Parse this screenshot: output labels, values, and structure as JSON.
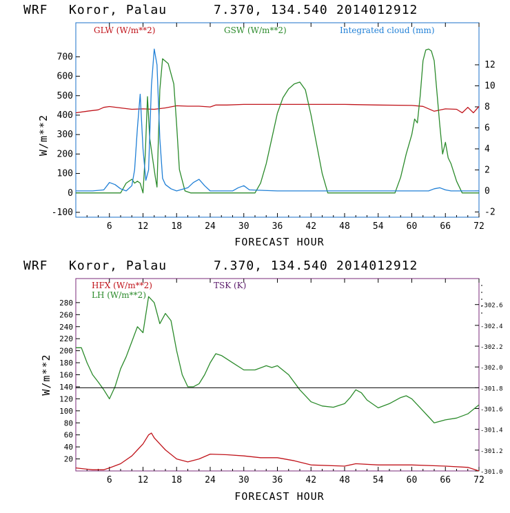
{
  "colors": {
    "red": "#c0131a",
    "green": "#2a8a2a",
    "blue": "#1f7fd6",
    "purple": "#5a1a6a",
    "frame_top": "#1a6fc9",
    "frame_bottom": "#7a2a7a"
  },
  "chart_data": [
    {
      "type": "line",
      "header": {
        "model": "WRF",
        "location": "Koror, Palau",
        "coords": "7.370, 134.540",
        "init": "2014012912"
      },
      "xlabel": "FORECAST HOUR",
      "ylabel": "W/m**2",
      "xlim": [
        0,
        72
      ],
      "ylim": [
        -125,
        875
      ],
      "y2lim": [
        -2.5,
        16
      ],
      "x_ticks": [
        "6",
        "12",
        "18",
        "24",
        "30",
        "36",
        "42",
        "48",
        "54",
        "60",
        "66",
        "72"
      ],
      "y_ticks": [
        "-100",
        "0",
        "100",
        "200",
        "300",
        "400",
        "500",
        "600",
        "700"
      ],
      "y2_ticks": [
        "-2",
        "0",
        "2",
        "4",
        "6",
        "8",
        "10",
        "12"
      ],
      "legend": [
        {
          "label": "GLW (W/m**2)",
          "color": "#c0131a"
        },
        {
          "label": "GSW (W/m**2)",
          "color": "#2a8a2a"
        },
        {
          "label": "Integrated cloud (mm)",
          "color": "#1f7fd6"
        }
      ],
      "series": [
        {
          "name": "GLW (W/m**2)",
          "axis": "left",
          "x": [
            0,
            2,
            4,
            5,
            6,
            8,
            10,
            12,
            14,
            16,
            18,
            20,
            22,
            24,
            25,
            27,
            30,
            36,
            42,
            48,
            54,
            60,
            62,
            64,
            66,
            68,
            69,
            70,
            71,
            72
          ],
          "y": [
            412,
            420,
            427,
            440,
            444,
            437,
            430,
            432,
            430,
            437,
            448,
            446,
            446,
            442,
            452,
            452,
            455,
            455,
            455,
            455,
            452,
            450,
            445,
            420,
            432,
            430,
            412,
            440,
            412,
            445
          ]
        },
        {
          "name": "GSW (W/m**2)",
          "axis": "left",
          "x": [
            0,
            8,
            9,
            10,
            10.5,
            11,
            11.5,
            12,
            12.4,
            12.8,
            13.2,
            13.6,
            14.2,
            14.5,
            15,
            15.5,
            16.5,
            17.5,
            18,
            18.5,
            19.5,
            20.5,
            21,
            32,
            33,
            34,
            35,
            36,
            37,
            38,
            39,
            40,
            41,
            42,
            43,
            44,
            45,
            57,
            58,
            59,
            60,
            60.5,
            61,
            61.5,
            62,
            62.5,
            63,
            63.5,
            64,
            65,
            65.5,
            66,
            66.5,
            67,
            68,
            69,
            72
          ],
          "y": [
            0,
            0,
            50,
            70,
            50,
            60,
            50,
            0,
            200,
            495,
            280,
            200,
            80,
            30,
            530,
            690,
            665,
            560,
            350,
            120,
            10,
            0,
            0,
            0,
            50,
            150,
            280,
            410,
            490,
            535,
            560,
            570,
            530,
            400,
            250,
            100,
            0,
            0,
            80,
            200,
            300,
            380,
            360,
            500,
            680,
            735,
            740,
            730,
            680,
            350,
            200,
            260,
            180,
            150,
            60,
            0,
            0
          ]
        },
        {
          "name": "Integrated cloud (mm)",
          "axis": "right",
          "x": [
            0,
            3,
            5,
            6,
            7,
            8,
            9,
            10,
            10.5,
            11,
            11.5,
            12,
            12.5,
            13,
            13.5,
            14,
            14.5,
            15,
            15.5,
            16,
            17,
            18,
            20,
            21,
            22,
            23,
            24,
            28,
            29,
            30,
            31,
            36,
            48,
            60,
            63,
            64,
            65,
            66,
            67,
            72
          ],
          "y": [
            0,
            0,
            0.1,
            0.8,
            0.6,
            0.2,
            0,
            0.5,
            2,
            6,
            9.2,
            4,
            1,
            2,
            10,
            13.5,
            12,
            5,
            1.2,
            0.6,
            0.2,
            0,
            0.3,
            0.8,
            1.1,
            0.5,
            0,
            0,
            0.3,
            0.5,
            0.1,
            0,
            0,
            0,
            0,
            0.2,
            0.3,
            0.1,
            0,
            0
          ]
        }
      ]
    },
    {
      "type": "line",
      "header": {
        "model": "WRF",
        "location": "Koror, Palau",
        "coords": "7.370, 134.540",
        "init": "2014012912"
      },
      "xlabel": "FORECAST HOUR",
      "ylabel": "W/m**2",
      "xlim": [
        0,
        72
      ],
      "ylim": [
        0,
        320
      ],
      "y2lim": [
        301.0,
        302.85
      ],
      "x_ticks": [
        "6",
        "12",
        "18",
        "24",
        "30",
        "36",
        "42",
        "48",
        "54",
        "60",
        "66",
        "72"
      ],
      "y_ticks": [
        "20",
        "40",
        "60",
        "80",
        "100",
        "120",
        "140",
        "160",
        "180",
        "200",
        "220",
        "240",
        "260",
        "280"
      ],
      "y2_ticks": [
        "301.0",
        "301.2",
        "301.4",
        "301.6",
        "301.8",
        "302.0",
        "302.2",
        "302.4",
        "302.6"
      ],
      "legend": [
        {
          "label": "HFX (W/m**2)",
          "color": "#c0131a"
        },
        {
          "label": "LH  (W/m**2)",
          "color": "#2a8a2a"
        },
        {
          "label": "TSK (K)",
          "color": "#5a1a6a"
        }
      ],
      "series": [
        {
          "name": "HFX (W/m**2)",
          "axis": "left",
          "x": [
            0,
            3,
            5,
            6,
            8,
            10,
            11,
            12,
            13,
            13.5,
            14,
            15,
            16,
            18,
            20,
            22,
            24,
            27,
            30,
            33,
            36,
            39,
            42,
            48,
            50,
            54,
            60,
            66,
            70,
            72
          ],
          "y": [
            5,
            2,
            2,
            5,
            12,
            25,
            35,
            45,
            60,
            63,
            55,
            45,
            35,
            20,
            15,
            20,
            28,
            27,
            25,
            22,
            22,
            17,
            10,
            8,
            12,
            10,
            10,
            8,
            6,
            0
          ]
        },
        {
          "name": "LH  (W/m**2)",
          "axis": "left",
          "x": [
            0,
            1,
            2,
            3,
            4,
            5,
            6,
            7,
            8,
            9,
            10,
            11,
            12,
            13,
            14,
            15,
            16,
            17,
            18,
            19,
            20,
            21,
            22,
            23,
            24,
            25,
            26,
            28,
            30,
            32,
            34,
            35,
            36,
            38,
            40,
            42,
            44,
            46,
            48,
            49,
            50,
            51,
            52,
            54,
            56,
            58,
            59,
            60,
            61,
            62,
            63,
            64,
            66,
            68,
            70,
            72
          ],
          "y": [
            205,
            205,
            180,
            160,
            148,
            135,
            120,
            140,
            170,
            190,
            215,
            240,
            230,
            290,
            280,
            245,
            262,
            250,
            200,
            160,
            140,
            140,
            145,
            160,
            180,
            195,
            192,
            180,
            168,
            168,
            175,
            172,
            175,
            160,
            135,
            115,
            108,
            106,
            112,
            122,
            135,
            130,
            118,
            105,
            112,
            122,
            125,
            120,
            110,
            100,
            90,
            80,
            85,
            88,
            95,
            110
          ]
        },
        {
          "name": "TSK (K)",
          "axis": "right",
          "x": [
            0,
            72
          ],
          "y": [
            301.8,
            301.8
          ]
        }
      ]
    }
  ]
}
